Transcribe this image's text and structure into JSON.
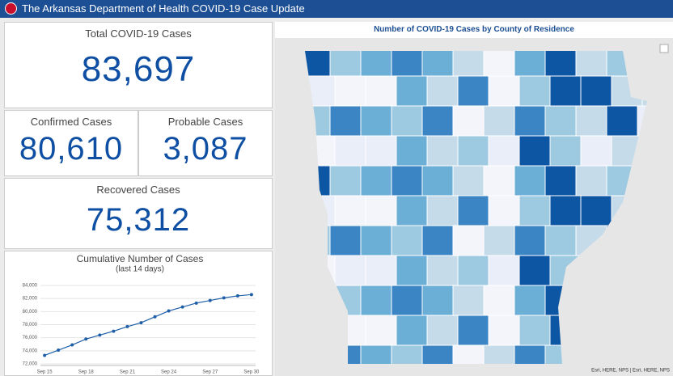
{
  "header": {
    "title": "The Arkansas Department of Health COVID-19 Case Update"
  },
  "total": {
    "label": "Total COVID-19 Cases",
    "value": "83,697"
  },
  "confirmed": {
    "label": "Confirmed Cases",
    "value": "80,610"
  },
  "probable": {
    "label": "Probable Cases",
    "value": "3,087"
  },
  "recovered": {
    "label": "Recovered Cases",
    "value": "75,312"
  },
  "chart_data": {
    "type": "line",
    "title": "Cumulative Number of Cases",
    "subtitle": "(last 14 days)",
    "categories": [
      "Sep 15",
      null,
      null,
      "Sep 18",
      null,
      null,
      "Sep 21",
      null,
      null,
      "Sep 24",
      null,
      null,
      "Sep 27",
      null,
      null,
      "Sep 30"
    ],
    "values": [
      73300,
      74100,
      74900,
      75800,
      76400,
      77000,
      77700,
      78300,
      79200,
      80100,
      80700,
      81300,
      81700,
      82100,
      82400,
      82600
    ],
    "color": "#1f5fa8",
    "ylim": [
      72000,
      84000
    ],
    "yticks": [
      {
        "value": 72000,
        "label": "72,000"
      },
      {
        "value": 74000,
        "label": "74,000"
      },
      {
        "value": 76000,
        "label": "76,000"
      },
      {
        "value": 78000,
        "label": "78,000"
      },
      {
        "value": 80000,
        "label": "80,000"
      },
      {
        "value": 82000,
        "label": "82,000"
      },
      {
        "value": 84000,
        "label": "84,000"
      }
    ],
    "grid": true
  },
  "map": {
    "title": "Number of COVID-19 Cases by County of Residence",
    "attribution": "Esri, HERE, NPS | Esri, HERE, NPS"
  }
}
